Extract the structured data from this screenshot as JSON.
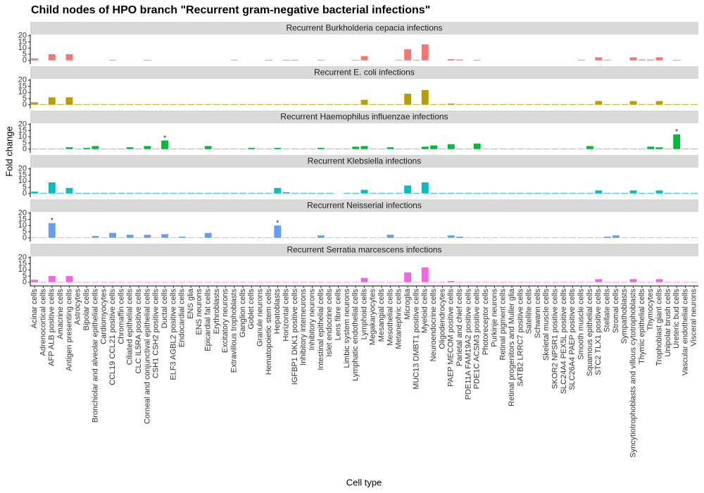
{
  "chart_data": {
    "type": "bar",
    "title": "Child nodes of HPO branch \"Recurrent gram-negative bacterial infections\"",
    "x_label": "Cell type",
    "y_label": "Fold change",
    "categories": [
      "Acinar cells",
      "Adrenocortical cells",
      "AFP ALB positive cells",
      "Amacrine cells",
      "Antigen presenting cells",
      "Astrocytes",
      "Bipolar cells",
      "Bronchiolar and alveolar epithelial cells",
      "Cardiomyocytes",
      "CCL19 CCL21 positive cells",
      "Chromaffin cells",
      "Ciliated epithelial cells",
      "CLC IL5RA positive cells",
      "Corneal and conjunctival epithelial cells",
      "CSH1 CSH2 positive cells",
      "Ductal cells",
      "ELF3 AGBL2 positive cells",
      "Endocardial cells",
      "ENS glia",
      "ENS neurons",
      "Epicardial fat cells",
      "Erythroblasts",
      "Excitatory neurons",
      "Extravillous trophoblasts",
      "Ganglion cells",
      "Goblet cells",
      "Granule neurons",
      "Hematopoietic stem cells",
      "Hepatoblasts",
      "Horizontal cells",
      "IGFBP1 DKK1 positive cells",
      "Inhibitory interneurons",
      "Inhibitory neurons",
      "Intestinal epithelial cells",
      "Islet endocrine cells",
      "Lens fibre cells",
      "Limbic system neurons",
      "Lymphatic endothelial cells",
      "Lymphoid cells",
      "Megakaryocytes",
      "Mesangial cells",
      "Mesothelial cells",
      "Metanephric cells",
      "Microglia",
      "MUC13 DMBT1 positive cells",
      "Myeloid cells",
      "Neuroendocrine cells",
      "Oligodendrocytes",
      "PAEP MECOM positive cells",
      "Parietal and chief cells",
      "PDE11A FAM19A2 positive cells",
      "PDE1C ACSM3 positive cells",
      "Photoreceptor cells",
      "Purkinje neurons",
      "Retinal pigment cells",
      "Retinal progenitors and Muller glia",
      "SATB2 LRRC7 positive cells",
      "Satellite cells",
      "Schwann cells",
      "Skeletal muscle cells",
      "SKOR2 NPSR1 positive cells",
      "SLC24A4 PEX5L positive cells",
      "SLC26A4 PAEP positive cells",
      "Smooth muscle cells",
      "Squamous epithelial cells",
      "STC2 TLX1 positive cells",
      "Stellate cells",
      "Stromal cells",
      "Sympathoblasts",
      "Syncytiotrophoblasts and villous cytotrophoblasts",
      "Thymic epithelial cells",
      "Thymocytes",
      "Trophoblast giant cells",
      "Unipolar brush cells",
      "Ureteric bud cells",
      "Vascular endothelial cells",
      "Visceral neurons"
    ],
    "series": [
      {
        "name": "Recurrent Burkholderia cepacia infections",
        "color": "#F8766D",
        "values": [
          1.5,
          0,
          5,
          0,
          5,
          0,
          0,
          0,
          0,
          0.5,
          0,
          0,
          0,
          0.5,
          0,
          0,
          0,
          0,
          0,
          0,
          0,
          0,
          0,
          0.5,
          0,
          0,
          0,
          0.5,
          0,
          0.5,
          0.5,
          0,
          0,
          0.5,
          0,
          0,
          0,
          0.5,
          3.5,
          0,
          0,
          0,
          0.5,
          9,
          0.5,
          13,
          0,
          0,
          1,
          0.7,
          0,
          0.5,
          0,
          0,
          0,
          0,
          0,
          0,
          0,
          0,
          0,
          0,
          0,
          0.5,
          0,
          2.5,
          0.5,
          0,
          0,
          2.5,
          0.7,
          0.7,
          2.5,
          0,
          0.5,
          0,
          0
        ]
      },
      {
        "name": "Recurrent E. coli infections",
        "color": "#B79F00",
        "values": [
          2,
          0.5,
          6,
          0.5,
          6,
          0.5,
          0.5,
          0.5,
          0.5,
          0.5,
          0.5,
          0.5,
          0.5,
          0.5,
          0.5,
          0.5,
          0.5,
          0.5,
          0.5,
          0.5,
          0.5,
          0.5,
          0.5,
          0.5,
          0.5,
          0.5,
          0.5,
          0.5,
          0.5,
          0.5,
          0.5,
          0.5,
          0.5,
          0.5,
          0.5,
          0.5,
          0.5,
          0.5,
          4,
          0.5,
          0.5,
          0.5,
          0.5,
          9,
          0.5,
          12,
          0.5,
          0.5,
          1,
          0.5,
          0.5,
          0.5,
          0.5,
          0.5,
          0.5,
          0.5,
          0.5,
          0.5,
          0.5,
          0.5,
          0.5,
          0.5,
          0.5,
          0.5,
          0.5,
          3,
          0.5,
          0.5,
          0.5,
          3,
          0.5,
          0.5,
          3,
          0.5,
          0.5,
          0.5,
          0.5
        ]
      },
      {
        "name": "Recurrent Haemophilus influenzae infections",
        "color": "#00BA38",
        "values": [
          0.3,
          0.3,
          0.3,
          0.3,
          1.5,
          0.3,
          1,
          2.5,
          0.3,
          0.3,
          0.3,
          1.5,
          0.3,
          2.5,
          0.3,
          7,
          0.3,
          0.3,
          0.3,
          0.3,
          2.5,
          0.3,
          0.3,
          0.3,
          0.3,
          1,
          0.3,
          0.3,
          1,
          0.3,
          0.3,
          0.3,
          0.3,
          1,
          0.3,
          0.3,
          0.3,
          2,
          2.5,
          0.3,
          0.3,
          1.5,
          0.3,
          0.3,
          0.3,
          2,
          3,
          0.3,
          4,
          0.3,
          0.3,
          4.5,
          0.3,
          0.3,
          0.3,
          0.3,
          0.3,
          0.3,
          0.3,
          0.3,
          0.3,
          0.3,
          0.3,
          0.3,
          2.5,
          0.3,
          0.3,
          0.3,
          0.3,
          0.3,
          0.3,
          2,
          1.5,
          0.3,
          12,
          0.3,
          0.3
        ]
      },
      {
        "name": "Recurrent Klebsiella infections",
        "color": "#00BFC4",
        "values": [
          1.5,
          0.5,
          9,
          0.5,
          4.5,
          0.5,
          0.5,
          0.5,
          0.5,
          0.5,
          0.5,
          0.5,
          0.5,
          0.5,
          0.5,
          0.5,
          0.5,
          0.5,
          0.5,
          0.5,
          0.5,
          0.5,
          0.5,
          0.5,
          0.5,
          0.5,
          0.5,
          0.5,
          4.5,
          1,
          0.5,
          0.5,
          0.5,
          0.5,
          0.5,
          0,
          0.5,
          0.5,
          3,
          0.5,
          0.5,
          0.5,
          0.5,
          6.5,
          0.5,
          9,
          0.5,
          0.5,
          0.5,
          0.5,
          0.5,
          0.5,
          0.5,
          0.5,
          0.5,
          0.5,
          0.5,
          0.5,
          0.5,
          0.5,
          0.5,
          0.5,
          0.5,
          0.5,
          0.5,
          2.5,
          0.5,
          0.5,
          0.5,
          2.5,
          0.5,
          0.5,
          2.5,
          0.5,
          0.5,
          0.5,
          0.5
        ]
      },
      {
        "name": "Recurrent Neisserial infections",
        "color": "#619CFF",
        "values": [
          0.3,
          0.3,
          12,
          0.3,
          0.3,
          0.3,
          0.3,
          1.5,
          0.3,
          4,
          0.3,
          2.5,
          0.3,
          2.5,
          0.3,
          3,
          0.3,
          1,
          0.3,
          0.3,
          4,
          0.3,
          0.3,
          0.3,
          0.3,
          0.3,
          0.3,
          0.3,
          10,
          0.3,
          0.3,
          0.3,
          0.3,
          2,
          0.3,
          0.3,
          0.3,
          0.3,
          0.3,
          0.3,
          0.3,
          2.5,
          0.3,
          0.3,
          0.3,
          0.3,
          0.3,
          0.3,
          2,
          1,
          0.3,
          0.3,
          0.3,
          0.3,
          0.3,
          0.3,
          0.3,
          0.3,
          0.3,
          0.3,
          0.3,
          0.3,
          0.3,
          0.3,
          0.3,
          0.3,
          1,
          2,
          0.3,
          0.3,
          0.3,
          0.3,
          0.3,
          0.3,
          0.3,
          0.3,
          0.3
        ]
      },
      {
        "name": "Recurrent Serratia marcescens infections",
        "color": "#F564E3",
        "values": [
          2,
          0.3,
          5,
          0.3,
          5,
          0.3,
          0.3,
          0.3,
          0.3,
          0.3,
          0.3,
          0.3,
          0.3,
          0.3,
          0.3,
          0.3,
          0.3,
          0.3,
          0.3,
          0.3,
          0.3,
          0.3,
          0.3,
          0.3,
          0.3,
          0.3,
          0.3,
          0.3,
          0.3,
          0.3,
          0.3,
          0.3,
          0.3,
          0.3,
          0.3,
          0.3,
          0.3,
          0.3,
          3.5,
          0.3,
          0.3,
          0.3,
          0.3,
          8,
          0.3,
          12,
          0.3,
          0.3,
          1,
          0.3,
          0.3,
          0.3,
          0.3,
          0.3,
          0.3,
          0.3,
          0.3,
          0.3,
          0.3,
          0.3,
          0.3,
          0.3,
          0.3,
          0.3,
          0.3,
          2.5,
          0.3,
          0.3,
          0.3,
          2.5,
          0.3,
          0.3,
          2.5,
          0.3,
          0.3,
          0.3,
          0.3
        ]
      }
    ],
    "annotations": [
      {
        "text": "*",
        "series": 2,
        "category": 15
      },
      {
        "text": "*",
        "series": 2,
        "category": 74
      },
      {
        "text": "*",
        "series": 4,
        "category": 2
      },
      {
        "text": "*",
        "series": 4,
        "category": 28
      }
    ],
    "ylim": [
      -3,
      21
    ],
    "yticks": [
      0,
      5,
      10,
      15,
      20
    ],
    "grid": false
  }
}
